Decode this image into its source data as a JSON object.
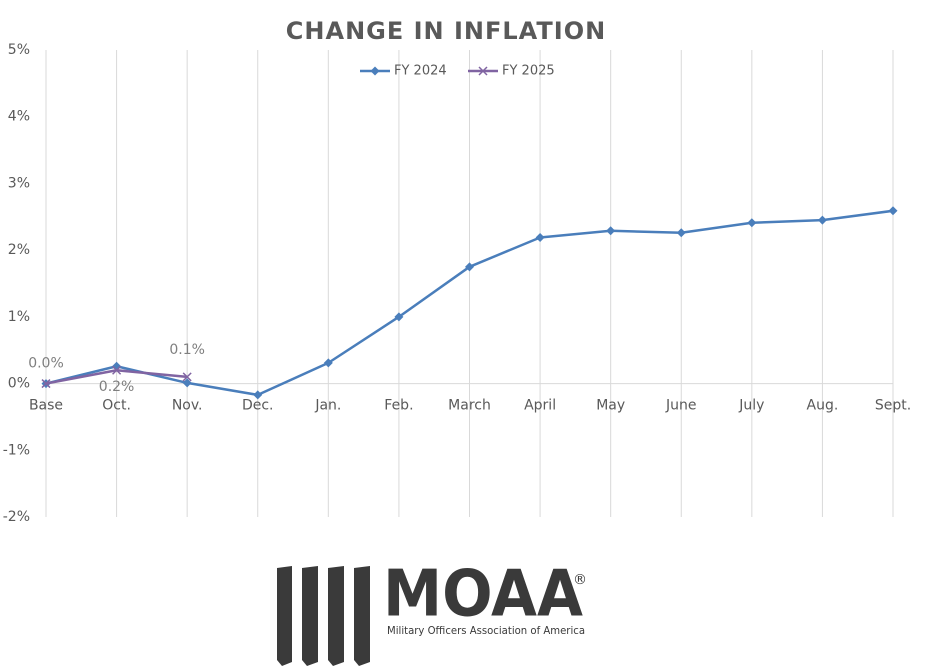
{
  "chart_data": {
    "type": "line",
    "title": "CHANGE IN INFLATION",
    "categories": [
      "Base",
      "Oct.",
      "Nov.",
      "Dec.",
      "Jan.",
      "Feb.",
      "March",
      "April",
      "May",
      "June",
      "July",
      "Aug.",
      "Sept."
    ],
    "series": [
      {
        "name": "FY 2024",
        "color": "#4a7ebb",
        "marker": "diamond",
        "values": [
          0,
          0.26,
          0.01,
          -0.17,
          0.31,
          1.0,
          1.75,
          2.19,
          2.29,
          2.26,
          2.41,
          2.45,
          2.59
        ]
      },
      {
        "name": "FY 2025",
        "color": "#8064a2",
        "marker": "x",
        "values": [
          0,
          0.2,
          0.1,
          null,
          null,
          null,
          null,
          null,
          null,
          null,
          null,
          null,
          null
        ],
        "value_labels": [
          "0.0%",
          "0.2%",
          "0.1%",
          null,
          null,
          null,
          null,
          null,
          null,
          null,
          null,
          null,
          null
        ]
      }
    ],
    "ylim": [
      -2,
      5
    ],
    "yticks": [
      {
        "value": -2,
        "label": "-2%"
      },
      {
        "value": -1,
        "label": "-1%"
      },
      {
        "value": 0,
        "label": "0%"
      },
      {
        "value": 1,
        "label": "1%"
      },
      {
        "value": 2,
        "label": "2%"
      },
      {
        "value": 3,
        "label": "3%"
      },
      {
        "value": 4,
        "label": "4%"
      },
      {
        "value": 5,
        "label": "5%"
      }
    ],
    "grid": "x",
    "legend": "top"
  },
  "logo": {
    "name": "MOAA",
    "registered": "®",
    "tagline": "Military Officers Association of America"
  }
}
